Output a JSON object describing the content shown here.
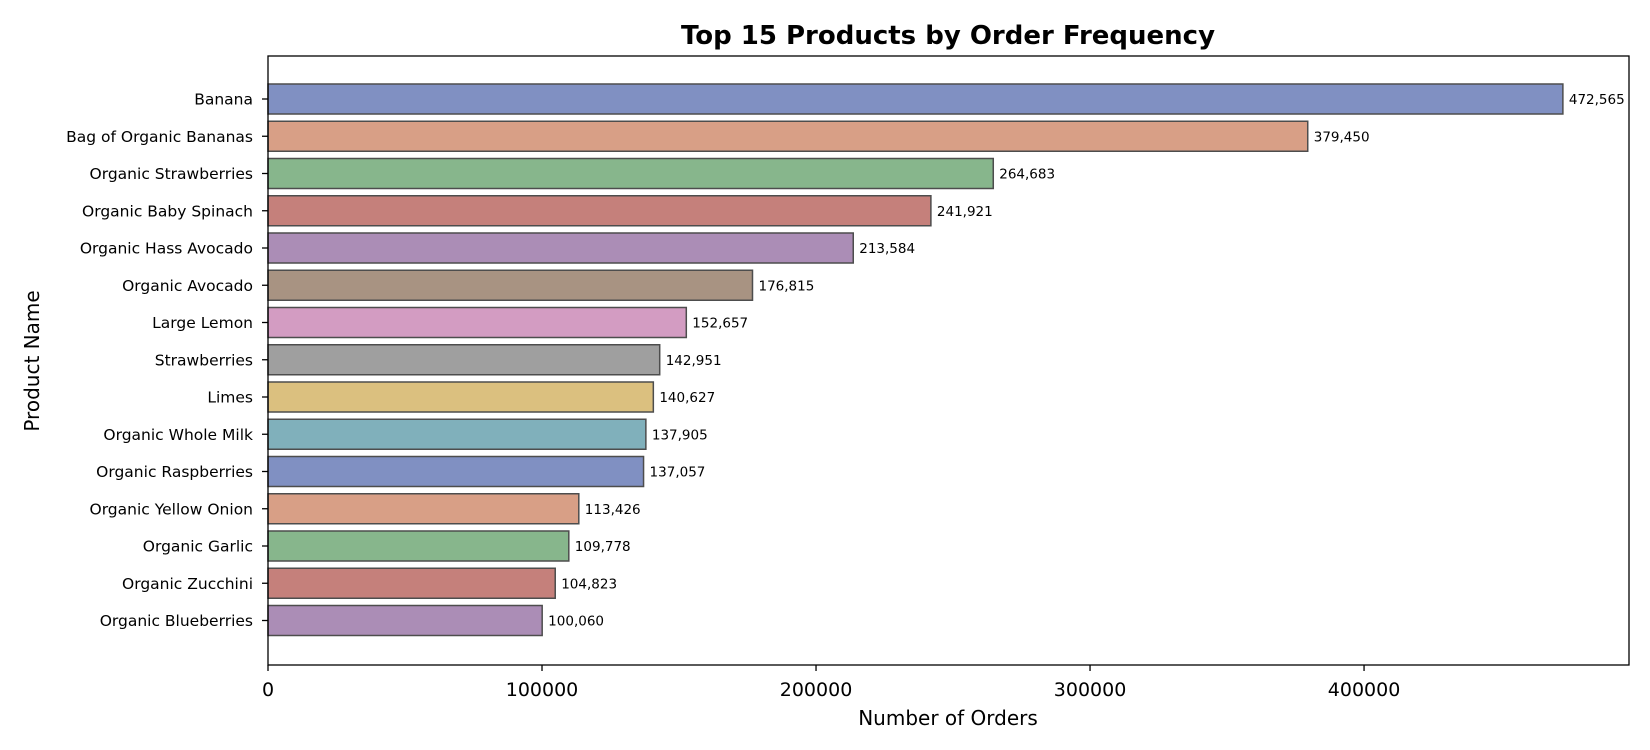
{
  "chart_data": {
    "type": "bar",
    "orientation": "horizontal",
    "title": "Top 15 Products by Order Frequency",
    "xlabel": "Number of Orders",
    "ylabel": "Product Name",
    "xlim": [
      0,
      496693
    ],
    "xticks": [
      0,
      100000,
      200000,
      300000,
      400000
    ],
    "xtick_labels": [
      "0",
      "100000",
      "200000",
      "300000",
      "400000"
    ],
    "grid": false,
    "legend": "none",
    "bar_edge_color": "#4d4d4d",
    "categories": [
      "Banana",
      "Bag of Organic Bananas",
      "Organic Strawberries",
      "Organic Baby Spinach",
      "Organic Hass Avocado",
      "Organic Avocado",
      "Large Lemon",
      "Strawberries",
      "Limes",
      "Organic Whole Milk",
      "Organic Raspberries",
      "Organic Yellow Onion",
      "Organic Garlic",
      "Organic Zucchini",
      "Organic Blueberries"
    ],
    "values": [
      472565,
      379450,
      264683,
      241921,
      213584,
      176815,
      152657,
      142951,
      140627,
      137905,
      137057,
      113426,
      109778,
      104823,
      100060
    ],
    "data_labels": [
      "472,565",
      "379,450",
      "264,683",
      "241,921",
      "213,584",
      "176,815",
      "152,657",
      "142,951",
      "140,627",
      "137,905",
      "137,057",
      "113,426",
      "109,778",
      "104,823",
      "100,060"
    ],
    "colors": [
      "#8090c2",
      "#d89f86",
      "#87b68c",
      "#c5807b",
      "#ab8db6",
      "#a89382",
      "#d39cc2",
      "#9f9f9f",
      "#dbc07f",
      "#80b0bb",
      "#8090c2",
      "#d89f86",
      "#87b68c",
      "#c5807b",
      "#ab8db6"
    ]
  }
}
